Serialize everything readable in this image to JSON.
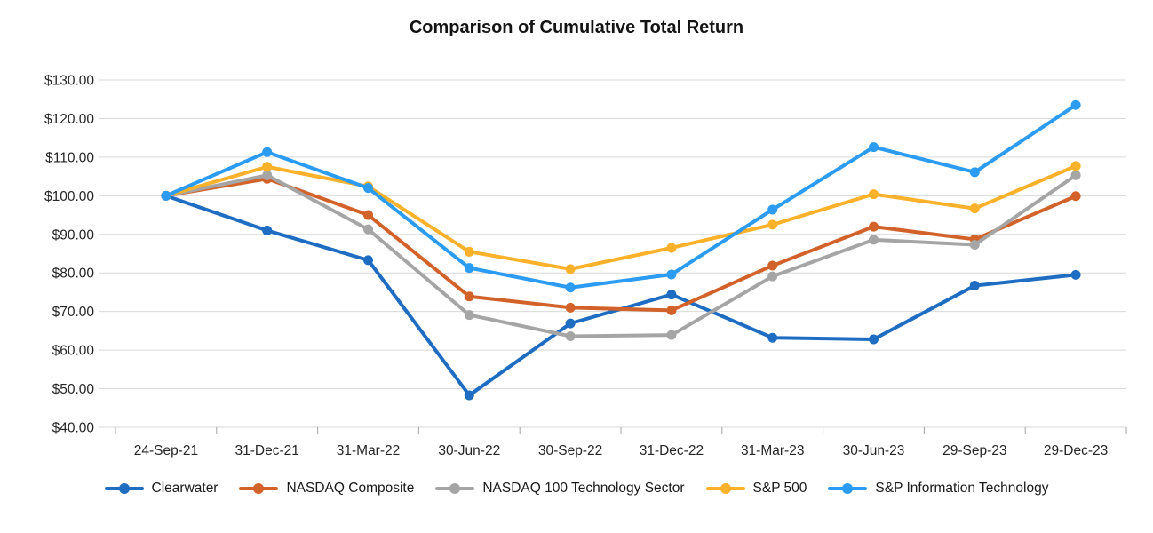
{
  "chart_data": {
    "type": "line",
    "title": "Comparison of Cumulative Total Return",
    "xlabel": "",
    "ylabel": "",
    "grid": true,
    "legend_position": "bottom",
    "marker": "circle",
    "ylim": [
      40,
      130
    ],
    "ytick_step": 10,
    "yticks": [
      {
        "value": 130,
        "label": "$130.00"
      },
      {
        "value": 120,
        "label": "$120.00"
      },
      {
        "value": 110,
        "label": "$110.00"
      },
      {
        "value": 100,
        "label": "$100.00"
      },
      {
        "value": 90,
        "label": "$90.00"
      },
      {
        "value": 80,
        "label": "$80.00"
      },
      {
        "value": 70,
        "label": "$70.00"
      },
      {
        "value": 60,
        "label": "$60.00"
      },
      {
        "value": 50,
        "label": "$50.00"
      },
      {
        "value": 40,
        "label": "$40.00"
      }
    ],
    "categories": [
      "24-Sep-21",
      "31-Dec-21",
      "31-Mar-22",
      "30-Jun-22",
      "30-Sep-22",
      "31-Dec-22",
      "31-Mar-23",
      "30-Jun-23",
      "29-Sep-23",
      "29-Dec-23"
    ],
    "series": [
      {
        "name": "Clearwater",
        "color": "#1e6dc3",
        "values": [
          100.0,
          91.0,
          83.3,
          48.3,
          66.9,
          74.4,
          63.2,
          62.8,
          76.7,
          79.5
        ]
      },
      {
        "name": "NASDAQ Composite",
        "color": "#d2622a",
        "values": [
          100.0,
          104.4,
          95.0,
          73.9,
          71.0,
          70.3,
          81.9,
          92.0,
          88.7,
          99.9
        ]
      },
      {
        "name": "NASDAQ 100 Technology Sector",
        "color": "#a5a5a5",
        "values": [
          100.0,
          105.3,
          91.3,
          69.1,
          63.6,
          63.9,
          79.1,
          88.6,
          87.3,
          105.3
        ]
      },
      {
        "name": "S&P 500",
        "color": "#fcb12b",
        "values": [
          100.0,
          107.5,
          102.4,
          85.5,
          81.0,
          86.5,
          92.5,
          100.4,
          96.7,
          107.7
        ]
      },
      {
        "name": "S&P Information Technology",
        "color": "#2b9bf3",
        "values": [
          100.0,
          111.3,
          102.0,
          81.3,
          76.2,
          79.6,
          96.4,
          112.6,
          106.1,
          123.5
        ]
      }
    ]
  }
}
